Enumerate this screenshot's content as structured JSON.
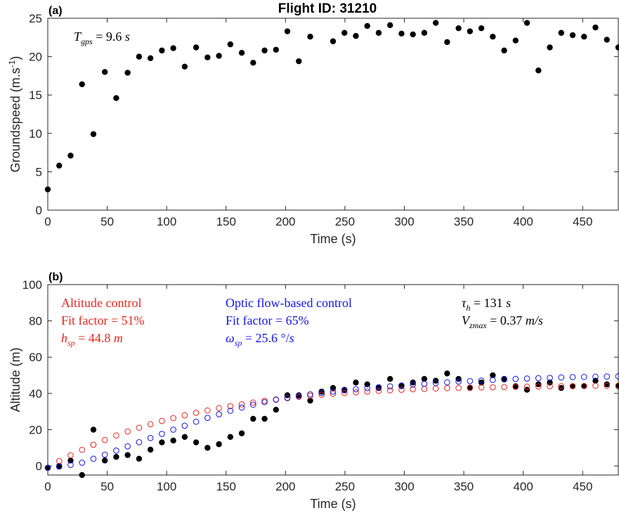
{
  "title": "Flight ID: 31210",
  "colors": {
    "observed": "#000000",
    "altitude_control": "#e8261f",
    "optic_flow_control": "#1414e6"
  },
  "chart_data": [
    {
      "type": "scatter",
      "panel_label": "(a)",
      "xlabel": "Time (s)",
      "ylabel": "Groundspeed (m.s-1)",
      "ylabel_parts": {
        "base": "Groundspeed (m.s",
        "sup": "-1",
        "close": ")"
      },
      "xlim": [
        0,
        480
      ],
      "ylim": [
        0,
        25
      ],
      "xticks": [
        0,
        50,
        100,
        150,
        200,
        250,
        300,
        350,
        400,
        450
      ],
      "yticks": [
        0,
        5,
        10,
        15,
        20,
        25
      ],
      "annotations": [
        {
          "text": "T_gps = 9.6 s"
        }
      ],
      "series": [
        {
          "x": [
            0,
            9.6,
            19.2,
            28.8,
            38.4,
            48,
            57.6,
            67.2,
            76.8,
            86.4,
            96,
            105.6,
            115.2,
            124.8,
            134.4,
            144,
            153.6,
            163.2,
            172.8,
            182.4,
            192,
            201.6,
            211.2,
            220.8,
            240,
            249.6,
            259.2,
            268.8,
            278.4,
            288,
            297.6,
            307.2,
            316.8,
            326.4,
            336,
            345.6,
            355.2,
            364.8,
            374.4,
            384,
            393.6,
            403.2,
            412.8,
            422.4,
            432,
            441.6,
            451.2,
            460.8,
            470.4,
            480
          ],
          "y": [
            2.7,
            5.8,
            7.1,
            16.4,
            9.9,
            18.0,
            14.6,
            17.9,
            20.0,
            19.8,
            20.8,
            21.1,
            18.7,
            21.2,
            19.9,
            20.1,
            21.6,
            20.5,
            19.2,
            20.8,
            20.9,
            23.3,
            19.4,
            22.6,
            22.0,
            23.1,
            22.7,
            24.0,
            23.1,
            24.1,
            23.0,
            22.9,
            23.1,
            24.4,
            21.9,
            23.7,
            23.3,
            23.7,
            22.6,
            20.8,
            22.1,
            24.4,
            18.2,
            21.2,
            23.1,
            22.8,
            22.6,
            23.8,
            22.2,
            21.2
          ]
        }
      ]
    },
    {
      "type": "scatter",
      "panel_label": "(b)",
      "xlabel": "Time (s)",
      "ylabel": "Altitude (m)",
      "xlim": [
        0,
        480
      ],
      "ylim": [
        -5,
        100
      ],
      "xticks": [
        0,
        50,
        100,
        150,
        200,
        250,
        300,
        350,
        400,
        450
      ],
      "yticks": [
        0,
        20,
        40,
        60,
        80,
        100
      ],
      "annotations": [
        {
          "text": "Altitude control",
          "color": "#e8261f"
        },
        {
          "text": "Fit factor = 51%",
          "color": "#e8261f"
        },
        {
          "text": "h_sp = 44.8 m",
          "color": "#e8261f"
        },
        {
          "text": "Optic flow-based control",
          "color": "#1414e6"
        },
        {
          "text": "Fit factor = 65%",
          "color": "#1414e6"
        },
        {
          "text": "ω_sp = 25.6 °/s",
          "color": "#1414e6"
        },
        {
          "text": "τ_h = 131 s",
          "color": "#000000"
        },
        {
          "text": "V_zmax = 0.37 m/s",
          "color": "#000000"
        }
      ],
      "series": [
        {
          "marker": "filled",
          "x": [
            0,
            9.6,
            19.2,
            28.8,
            38.4,
            48,
            57.6,
            67.2,
            76.8,
            86.4,
            96,
            105.6,
            115.2,
            124.8,
            134.4,
            144,
            153.6,
            163.2,
            172.8,
            182.4,
            192,
            201.6,
            211.2,
            220.8,
            230.4,
            240,
            249.6,
            259.2,
            268.8,
            278.4,
            288,
            297.6,
            307.2,
            316.8,
            326.4,
            336,
            345.6,
            355.2,
            364.8,
            374.4,
            384,
            393.6,
            403.2,
            412.8,
            422.4,
            432,
            441.6,
            451.2,
            460.8,
            470.4,
            480
          ],
          "y": [
            -1,
            0,
            3,
            -5,
            20,
            3,
            5,
            6,
            4,
            9,
            13,
            14,
            16,
            13,
            10,
            12,
            16,
            18,
            26,
            26,
            31,
            39,
            39,
            36,
            41,
            43,
            42,
            46,
            45,
            43,
            48,
            44,
            46,
            48,
            47,
            51,
            48,
            43,
            46,
            50,
            48,
            44,
            42,
            45,
            46,
            43,
            44,
            44,
            47,
            45,
            44
          ]
        },
        {
          "marker": "open",
          "name": "Altitude control",
          "x": [
            0,
            9.6,
            19.2,
            28.8,
            38.4,
            48,
            57.6,
            67.2,
            76.8,
            86.4,
            96,
            105.6,
            115.2,
            124.8,
            134.4,
            144,
            153.6,
            163.2,
            172.8,
            182.4,
            192,
            201.6,
            211.2,
            220.8,
            230.4,
            240,
            249.6,
            259.2,
            268.8,
            278.4,
            288,
            297.6,
            307.2,
            316.8,
            326.4,
            336,
            345.6,
            355.2,
            364.8,
            374.4,
            384,
            393.6,
            403.2,
            412.8,
            422.4,
            432,
            441.6,
            451.2,
            460.8,
            470.4,
            480
          ],
          "y": [
            -1,
            2.7,
            5.9,
            8.9,
            11.7,
            14.3,
            16.8,
            19.0,
            21.1,
            23.0,
            24.8,
            26.4,
            27.9,
            29.3,
            30.6,
            31.9,
            33.0,
            34.0,
            35.0,
            35.9,
            36.7,
            37.4,
            38.1,
            38.7,
            39.3,
            39.8,
            40.2,
            40.6,
            41.0,
            41.4,
            41.7,
            42.0,
            42.3,
            42.5,
            42.7,
            42.9,
            43.0,
            43.2,
            43.3,
            43.4,
            43.5,
            43.6,
            43.7,
            43.8,
            43.9,
            44.0,
            44.0,
            44.1,
            44.2,
            44.2,
            44.3
          ]
        },
        {
          "marker": "open",
          "name": "Optic flow-based control",
          "x": [
            0,
            9.6,
            19.2,
            28.8,
            38.4,
            48,
            57.6,
            67.2,
            76.8,
            86.4,
            96,
            105.6,
            115.2,
            124.8,
            134.4,
            144,
            153.6,
            163.2,
            172.8,
            182.4,
            192,
            201.6,
            211.2,
            220.8,
            230.4,
            240,
            249.6,
            259.2,
            268.8,
            278.4,
            288,
            297.6,
            307.2,
            316.8,
            326.4,
            336,
            345.6,
            355.2,
            364.8,
            374.4,
            384,
            393.6,
            403.2,
            412.8,
            422.4,
            432,
            441.6,
            451.2,
            460.8,
            470.4,
            480
          ],
          "y": [
            -1,
            -0.4,
            0.6,
            1.8,
            4.0,
            6.2,
            8.5,
            10.8,
            13.1,
            15.4,
            17.7,
            20.0,
            22.2,
            24.4,
            26.5,
            28.5,
            30.4,
            32.2,
            33.8,
            35.2,
            36.5,
            37.6,
            38.6,
            39.5,
            40.3,
            41.0,
            41.7,
            42.3,
            42.9,
            43.4,
            43.9,
            44.4,
            44.9,
            45.3,
            45.7,
            46.1,
            46.5,
            46.8,
            47.1,
            47.4,
            47.7,
            48.0,
            48.2,
            48.4,
            48.6,
            48.8,
            49.0,
            49.1,
            49.2,
            49.3,
            49.4
          ]
        }
      ]
    }
  ]
}
